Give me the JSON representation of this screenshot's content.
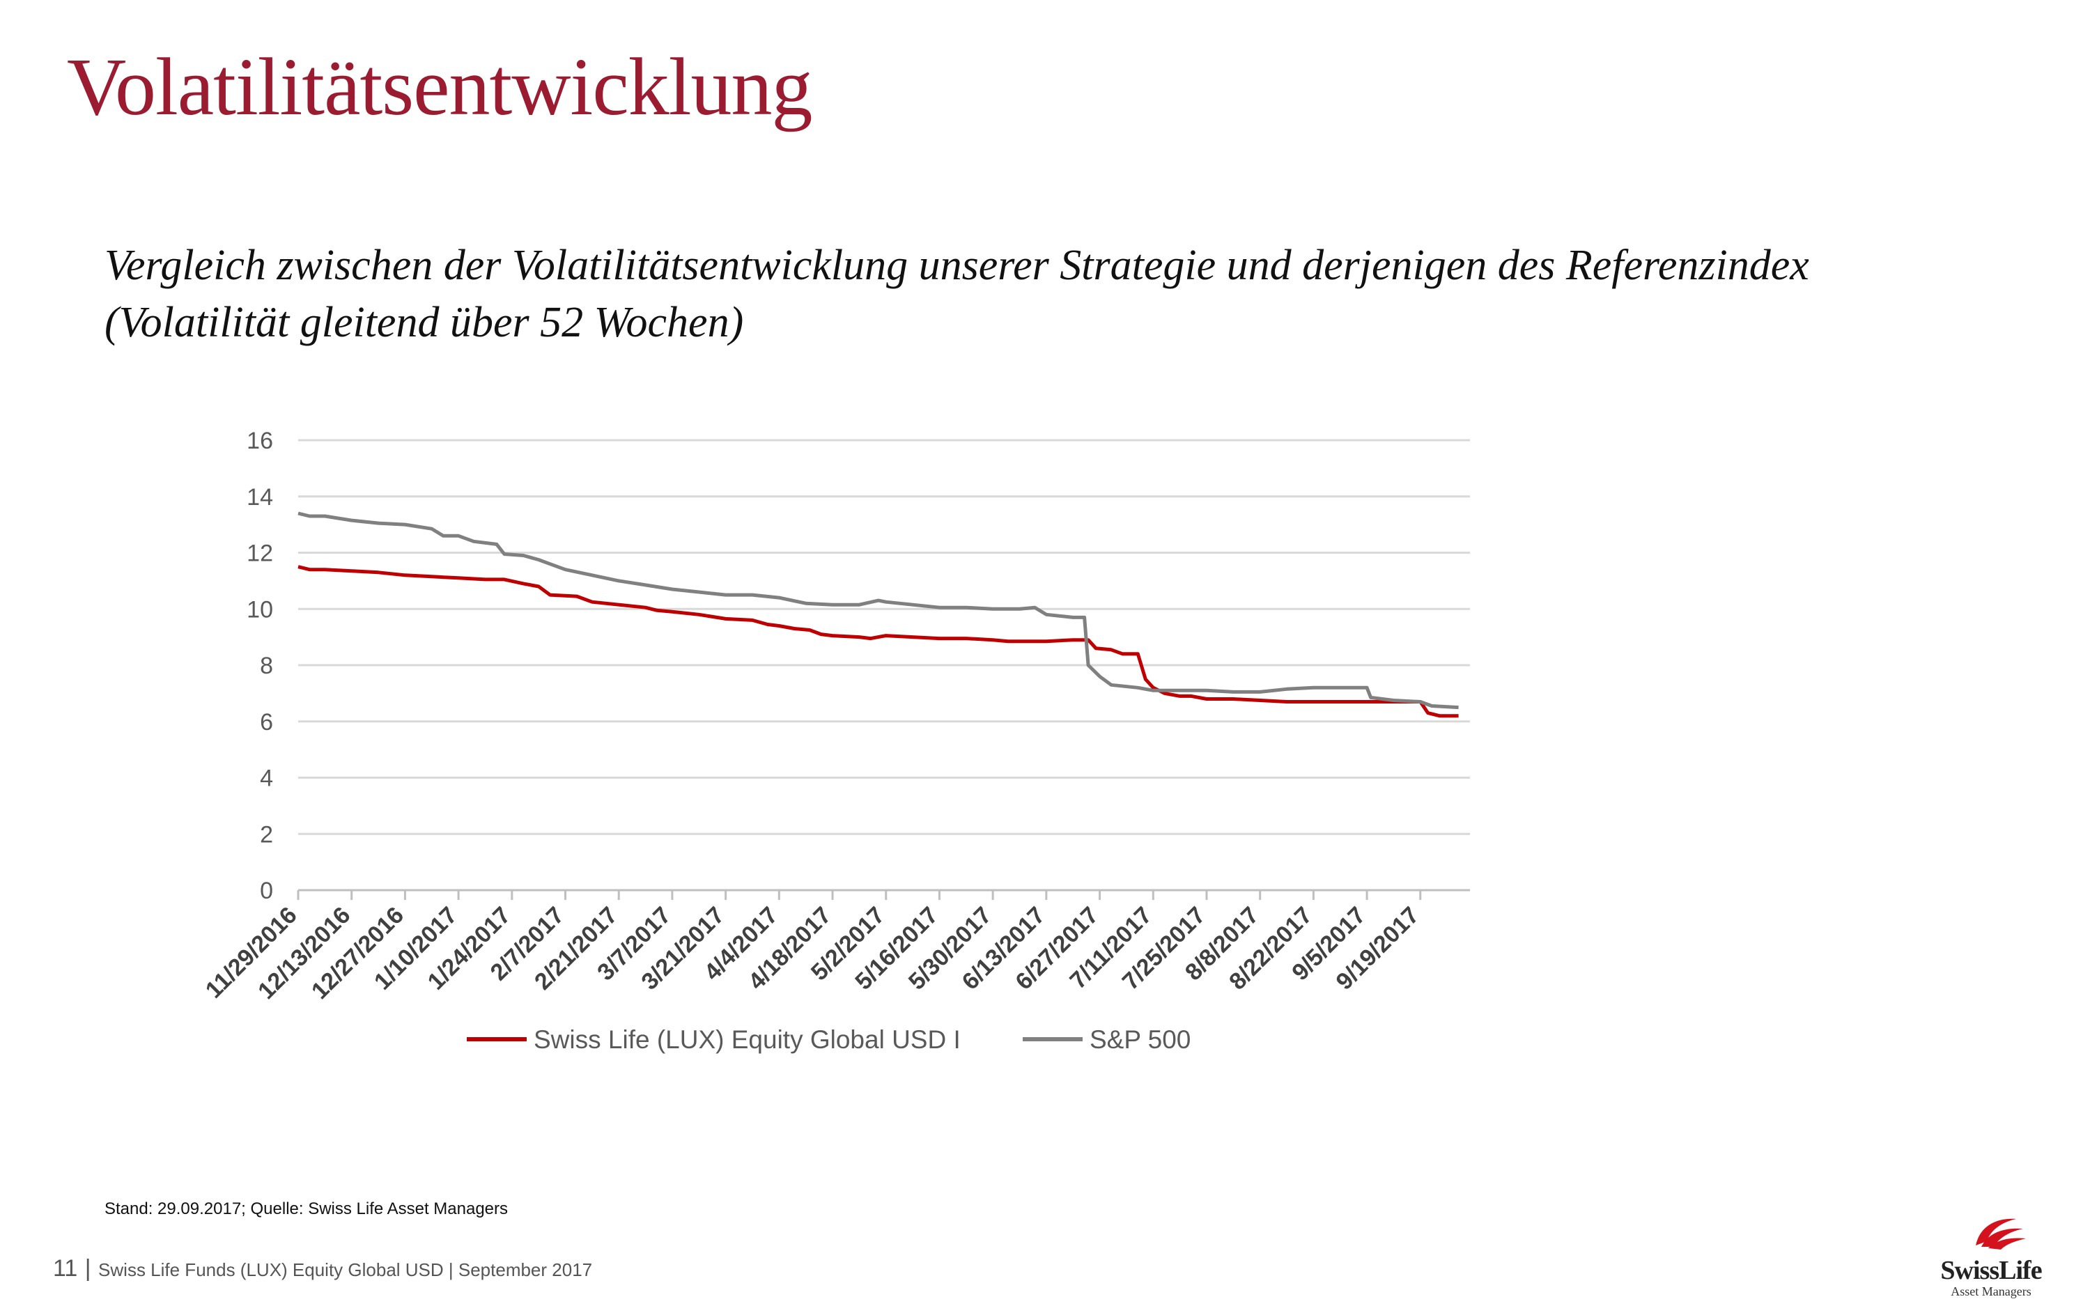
{
  "title": "Volatilitätsentwicklung",
  "subtitle": {
    "line1": "Vergleich zwischen der Volatilitätsentwicklung unserer Strategie und derjenigen des Referenzindex",
    "line2": "(Volatilität gleitend über 52 Wochen)"
  },
  "source_note": "Stand: 29.09.2017; Quelle: Swiss Life Asset Managers",
  "footer": {
    "page": "11",
    "separator": "|",
    "text": "Swiss Life Funds (LUX) Equity Global USD | September 2017"
  },
  "logo": {
    "brand": "SwissLife",
    "sub": "Asset Managers"
  },
  "colors": {
    "title": "#9b1b30",
    "series_fund": "#c00000",
    "series_index": "#808080",
    "grid": "#d9d9d9"
  },
  "chart_data": {
    "type": "line",
    "title": "",
    "xlabel": "",
    "ylabel": "",
    "ylim": [
      0,
      16
    ],
    "yticks": [
      0,
      2,
      4,
      6,
      8,
      10,
      12,
      14,
      16
    ],
    "xlim": [
      "11/29/2016",
      "10/2/2017"
    ],
    "xtick_labels": [
      "11/29/2016",
      "12/13/2016",
      "12/27/2016",
      "1/10/2017",
      "1/24/2017",
      "2/7/2017",
      "2/21/2017",
      "3/7/2017",
      "3/21/2017",
      "4/4/2017",
      "4/18/2017",
      "5/2/2017",
      "5/16/2017",
      "5/30/2017",
      "6/13/2017",
      "6/27/2017",
      "7/11/2017",
      "7/25/2017",
      "8/8/2017",
      "8/22/2017",
      "9/5/2017",
      "9/19/2017"
    ],
    "grid": true,
    "legend_position": "bottom",
    "series": [
      {
        "name": "Swiss Life (LUX) Equity Global USD I",
        "color": "#c00000",
        "points": [
          [
            "11/29/2016",
            11.5
          ],
          [
            "12/2/2016",
            11.4
          ],
          [
            "12/6/2016",
            11.4
          ],
          [
            "12/13/2016",
            11.35
          ],
          [
            "12/20/2016",
            11.3
          ],
          [
            "12/27/2016",
            11.2
          ],
          [
            "1/3/2017",
            11.15
          ],
          [
            "1/10/2017",
            11.1
          ],
          [
            "1/17/2017",
            11.05
          ],
          [
            "1/22/2017",
            11.05
          ],
          [
            "1/27/2017",
            10.9
          ],
          [
            "1/31/2017",
            10.8
          ],
          [
            "2/3/2017",
            10.5
          ],
          [
            "2/10/2017",
            10.45
          ],
          [
            "2/14/2017",
            10.25
          ],
          [
            "2/21/2017",
            10.15
          ],
          [
            "2/28/2017",
            10.05
          ],
          [
            "3/3/2017",
            9.95
          ],
          [
            "3/7/2017",
            9.9
          ],
          [
            "3/14/2017",
            9.8
          ],
          [
            "3/21/2017",
            9.65
          ],
          [
            "3/28/2017",
            9.6
          ],
          [
            "4/1/2017",
            9.45
          ],
          [
            "4/4/2017",
            9.4
          ],
          [
            "4/8/2017",
            9.3
          ],
          [
            "4/12/2017",
            9.25
          ],
          [
            "4/15/2017",
            9.1
          ],
          [
            "4/18/2017",
            9.05
          ],
          [
            "4/25/2017",
            9.0
          ],
          [
            "4/28/2017",
            8.95
          ],
          [
            "5/2/2017",
            9.05
          ],
          [
            "5/9/2017",
            9.0
          ],
          [
            "5/16/2017",
            8.95
          ],
          [
            "5/23/2017",
            8.95
          ],
          [
            "5/30/2017",
            8.9
          ],
          [
            "6/3/2017",
            8.85
          ],
          [
            "6/13/2017",
            8.85
          ],
          [
            "6/20/2017",
            8.9
          ],
          [
            "6/24/2017",
            8.9
          ],
          [
            "6/26/2017",
            8.6
          ],
          [
            "6/30/2017",
            8.55
          ],
          [
            "7/3/2017",
            8.4
          ],
          [
            "7/7/2017",
            8.4
          ],
          [
            "7/9/2017",
            7.5
          ],
          [
            "7/11/2017",
            7.2
          ],
          [
            "7/14/2017",
            7.0
          ],
          [
            "7/18/2017",
            6.9
          ],
          [
            "7/21/2017",
            6.9
          ],
          [
            "7/25/2017",
            6.8
          ],
          [
            "8/1/2017",
            6.8
          ],
          [
            "8/8/2017",
            6.75
          ],
          [
            "8/15/2017",
            6.7
          ],
          [
            "8/22/2017",
            6.7
          ],
          [
            "8/29/2017",
            6.7
          ],
          [
            "9/5/2017",
            6.7
          ],
          [
            "9/12/2017",
            6.7
          ],
          [
            "9/19/2017",
            6.7
          ],
          [
            "9/21/2017",
            6.3
          ],
          [
            "9/24/2017",
            6.2
          ],
          [
            "9/29/2017",
            6.2
          ]
        ]
      },
      {
        "name": "S&P 500",
        "color": "#808080",
        "points": [
          [
            "11/29/2016",
            13.4
          ],
          [
            "12/2/2016",
            13.3
          ],
          [
            "12/6/2016",
            13.3
          ],
          [
            "12/13/2016",
            13.15
          ],
          [
            "12/20/2016",
            13.05
          ],
          [
            "12/27/2016",
            13.0
          ],
          [
            "1/3/2017",
            12.85
          ],
          [
            "1/6/2017",
            12.6
          ],
          [
            "1/10/2017",
            12.6
          ],
          [
            "1/14/2017",
            12.4
          ],
          [
            "1/20/2017",
            12.3
          ],
          [
            "1/22/2017",
            11.95
          ],
          [
            "1/27/2017",
            11.9
          ],
          [
            "1/31/2017",
            11.75
          ],
          [
            "2/3/2017",
            11.6
          ],
          [
            "2/7/2017",
            11.4
          ],
          [
            "2/14/2017",
            11.2
          ],
          [
            "2/21/2017",
            11.0
          ],
          [
            "2/28/2017",
            10.85
          ],
          [
            "3/7/2017",
            10.7
          ],
          [
            "3/14/2017",
            10.6
          ],
          [
            "3/21/2017",
            10.5
          ],
          [
            "3/28/2017",
            10.5
          ],
          [
            "4/4/2017",
            10.4
          ],
          [
            "4/11/2017",
            10.2
          ],
          [
            "4/18/2017",
            10.15
          ],
          [
            "4/25/2017",
            10.15
          ],
          [
            "4/30/2017",
            10.3
          ],
          [
            "5/2/2017",
            10.25
          ],
          [
            "5/9/2017",
            10.15
          ],
          [
            "5/16/2017",
            10.05
          ],
          [
            "5/23/2017",
            10.05
          ],
          [
            "5/30/2017",
            10.0
          ],
          [
            "6/6/2017",
            10.0
          ],
          [
            "6/10/2017",
            10.05
          ],
          [
            "6/13/2017",
            9.8
          ],
          [
            "6/20/2017",
            9.7
          ],
          [
            "6/23/2017",
            9.7
          ],
          [
            "6/24/2017",
            8.0
          ],
          [
            "6/27/2017",
            7.6
          ],
          [
            "6/30/2017",
            7.3
          ],
          [
            "7/7/2017",
            7.2
          ],
          [
            "7/11/2017",
            7.1
          ],
          [
            "7/18/2017",
            7.1
          ],
          [
            "7/25/2017",
            7.1
          ],
          [
            "8/1/2017",
            7.05
          ],
          [
            "8/8/2017",
            7.05
          ],
          [
            "8/15/2017",
            7.15
          ],
          [
            "8/22/2017",
            7.2
          ],
          [
            "8/29/2017",
            7.2
          ],
          [
            "9/5/2017",
            7.2
          ],
          [
            "9/6/2017",
            6.85
          ],
          [
            "9/12/2017",
            6.75
          ],
          [
            "9/19/2017",
            6.7
          ],
          [
            "9/22/2017",
            6.55
          ],
          [
            "9/29/2017",
            6.5
          ]
        ]
      }
    ]
  }
}
